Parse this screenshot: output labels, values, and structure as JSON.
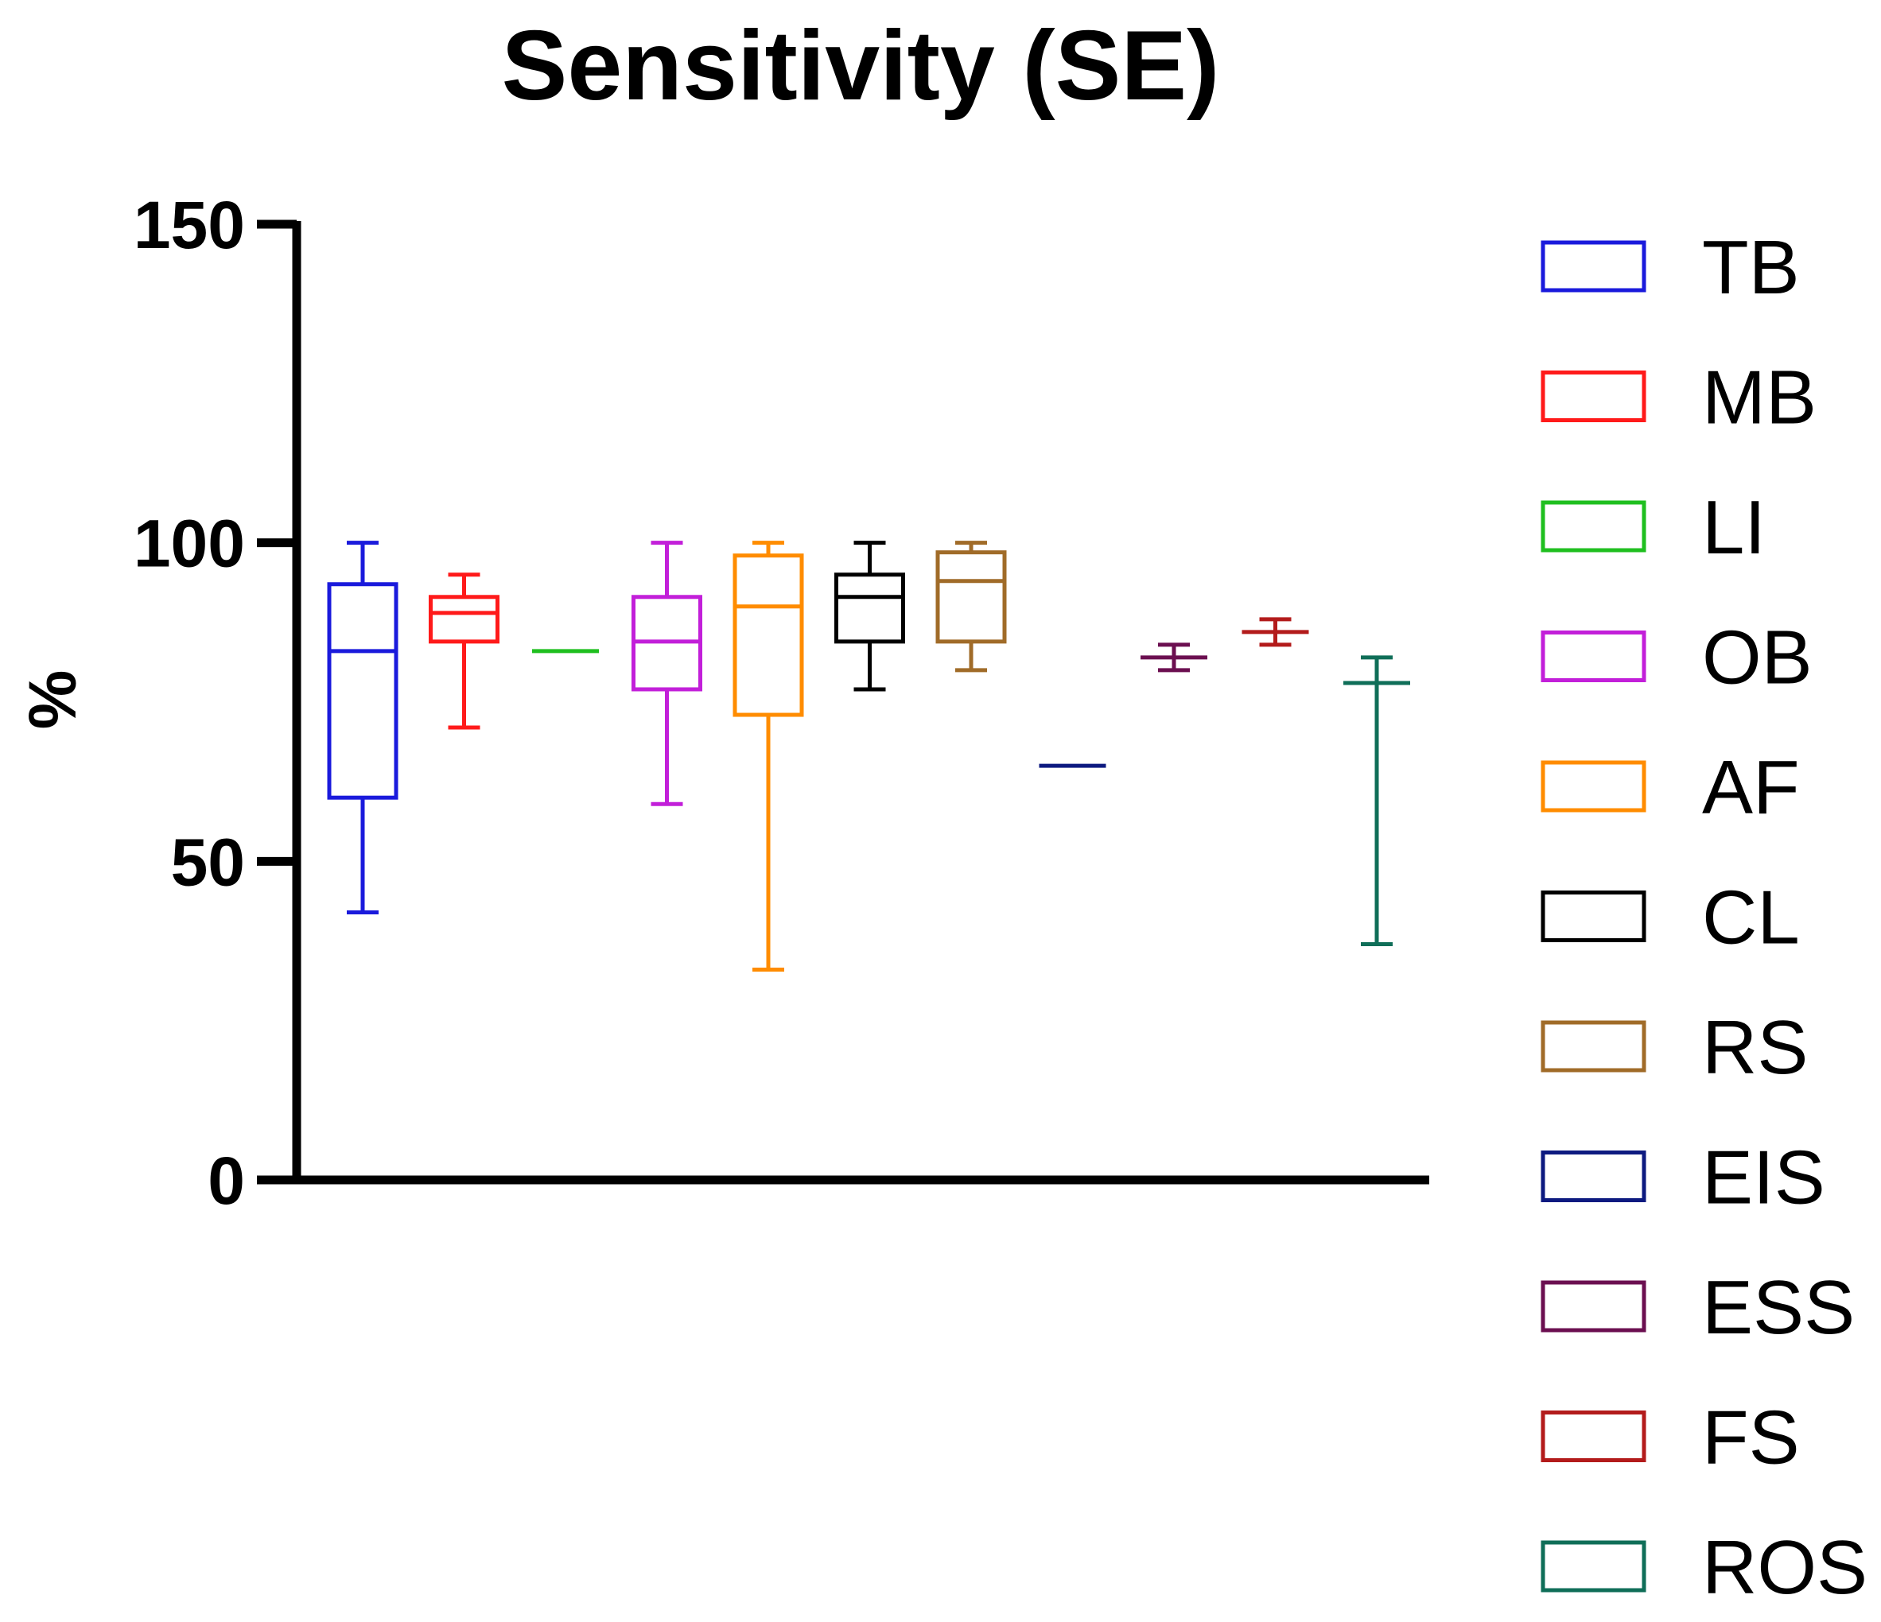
{
  "chart_data": {
    "type": "boxplot",
    "title": "Sensitivity (SE)",
    "xlabel": "",
    "ylabel": "%",
    "ylim": [
      0,
      150
    ],
    "yticks": [
      "0",
      "50",
      "100",
      "150"
    ],
    "legend_position": "right",
    "series": [
      {
        "name": "TB",
        "color": "#1a1adc",
        "min": 42,
        "q1": 60,
        "median": 83,
        "q3": 93.5,
        "max": 100
      },
      {
        "name": "MB",
        "color": "#ff1a1a",
        "min": 71,
        "q1": 84.5,
        "median": 89,
        "q3": 91.5,
        "max": 95
      },
      {
        "name": "LI",
        "color": "#1fbf1f",
        "min": 83,
        "q1": 83,
        "median": 83,
        "q3": 83,
        "max": 83
      },
      {
        "name": "OB",
        "color": "#c21fd9",
        "min": 59,
        "q1": 77,
        "median": 84.5,
        "q3": 91.5,
        "max": 100
      },
      {
        "name": "AF",
        "color": "#ff8c00",
        "min": 33,
        "q1": 73,
        "median": 90,
        "q3": 98,
        "max": 100
      },
      {
        "name": "CL",
        "color": "#000000",
        "min": 77,
        "q1": 84.5,
        "median": 91.5,
        "q3": 95,
        "max": 100
      },
      {
        "name": "RS",
        "color": "#a06b28",
        "min": 80,
        "q1": 84.5,
        "median": 94,
        "q3": 98.5,
        "max": 100
      },
      {
        "name": "EIS",
        "color": "#0d1a80",
        "min": 65,
        "q1": 65,
        "median": 65,
        "q3": 65,
        "max": 65
      },
      {
        "name": "ESS",
        "color": "#6b0f50",
        "min": 80,
        "q1": 82,
        "median": 82,
        "q3": 82,
        "max": 84
      },
      {
        "name": "FS",
        "color": "#b31b1b",
        "min": 84,
        "q1": 86,
        "median": 86,
        "q3": 86,
        "max": 88
      },
      {
        "name": "ROS",
        "color": "#0f6e58",
        "min": 37,
        "q1": 78,
        "median": 78,
        "q3": 78,
        "max": 82
      }
    ]
  }
}
